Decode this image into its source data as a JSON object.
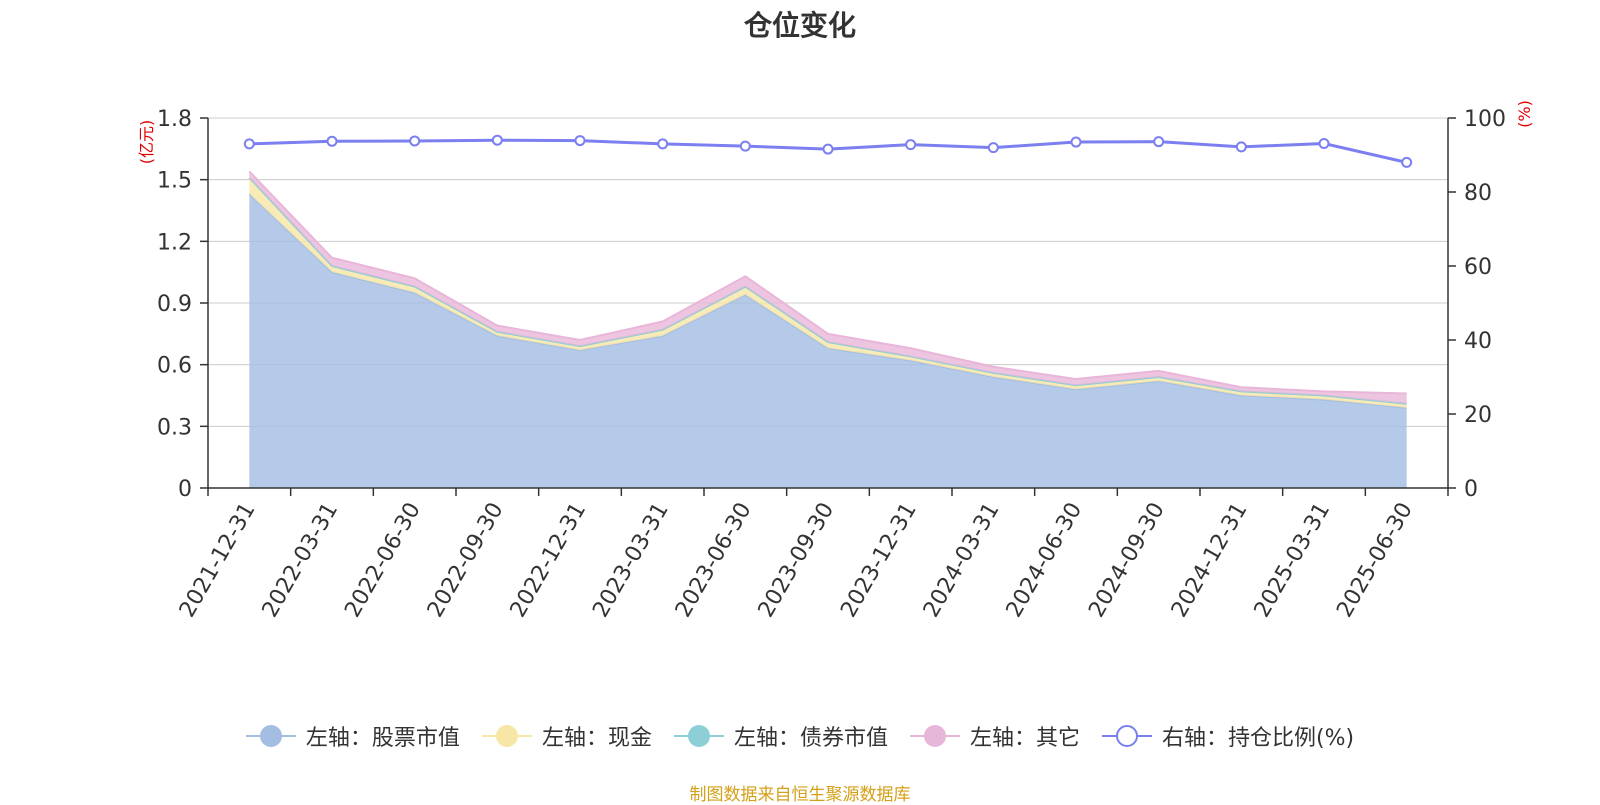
{
  "title": "仓位变化",
  "source_text": "制图数据来自恒生聚源数据库",
  "colors": {
    "stock": "#a3bde3",
    "cash": "#f7e6a6",
    "bond": "#8ccfd6",
    "other": "#e8b6d9",
    "ratio": "#7b7ff0",
    "axis_unit": "#e00000"
  },
  "chart_data": {
    "type": "area",
    "categories": [
      "2021-12-31",
      "2022-03-31",
      "2022-06-30",
      "2022-09-30",
      "2022-12-31",
      "2023-03-31",
      "2023-06-30",
      "2023-09-30",
      "2023-12-31",
      "2024-03-31",
      "2024-06-30",
      "2024-09-30",
      "2024-12-31",
      "2025-03-31",
      "2025-06-30"
    ],
    "y_left": {
      "label": "(亿元)",
      "ylim": [
        0,
        1.8
      ],
      "ticks": [
        "0",
        "0.3",
        "0.6",
        "0.9",
        "1.2",
        "1.5",
        "1.8"
      ]
    },
    "y_right": {
      "label": "(%)",
      "ylim": [
        0,
        100
      ],
      "ticks": [
        "0",
        "20",
        "40",
        "60",
        "80",
        "100"
      ]
    },
    "grid": true,
    "legend_position": "bottom",
    "series": [
      {
        "key": "stock",
        "name": "左轴：股票市值",
        "axis": "left",
        "stacked": true,
        "values": [
          1.43,
          1.05,
          0.95,
          0.74,
          0.67,
          0.74,
          0.94,
          0.68,
          0.62,
          0.54,
          0.48,
          0.52,
          0.45,
          0.43,
          0.39
        ]
      },
      {
        "key": "cash",
        "name": "左轴：现金",
        "axis": "left",
        "stacked": true,
        "values": [
          0.08,
          0.03,
          0.03,
          0.02,
          0.02,
          0.03,
          0.04,
          0.03,
          0.02,
          0.02,
          0.02,
          0.02,
          0.02,
          0.02,
          0.02
        ]
      },
      {
        "key": "bond",
        "name": "左轴：债券市值",
        "axis": "left",
        "stacked": true,
        "values": [
          0,
          0,
          0,
          0,
          0,
          0,
          0,
          0,
          0,
          0,
          0,
          0,
          0,
          0,
          0
        ]
      },
      {
        "key": "other",
        "name": "左轴：其它",
        "axis": "left",
        "stacked": true,
        "values": [
          0.03,
          0.04,
          0.04,
          0.03,
          0.03,
          0.04,
          0.05,
          0.04,
          0.04,
          0.03,
          0.03,
          0.03,
          0.02,
          0.02,
          0.05
        ]
      },
      {
        "key": "ratio",
        "name": "右轴：持仓比例(%)",
        "axis": "right",
        "type": "line",
        "values": [
          93,
          93.7,
          93.8,
          94,
          93.9,
          93,
          92.4,
          91.6,
          92.8,
          92,
          93.5,
          93.6,
          92.2,
          93.1,
          88
        ]
      }
    ]
  }
}
